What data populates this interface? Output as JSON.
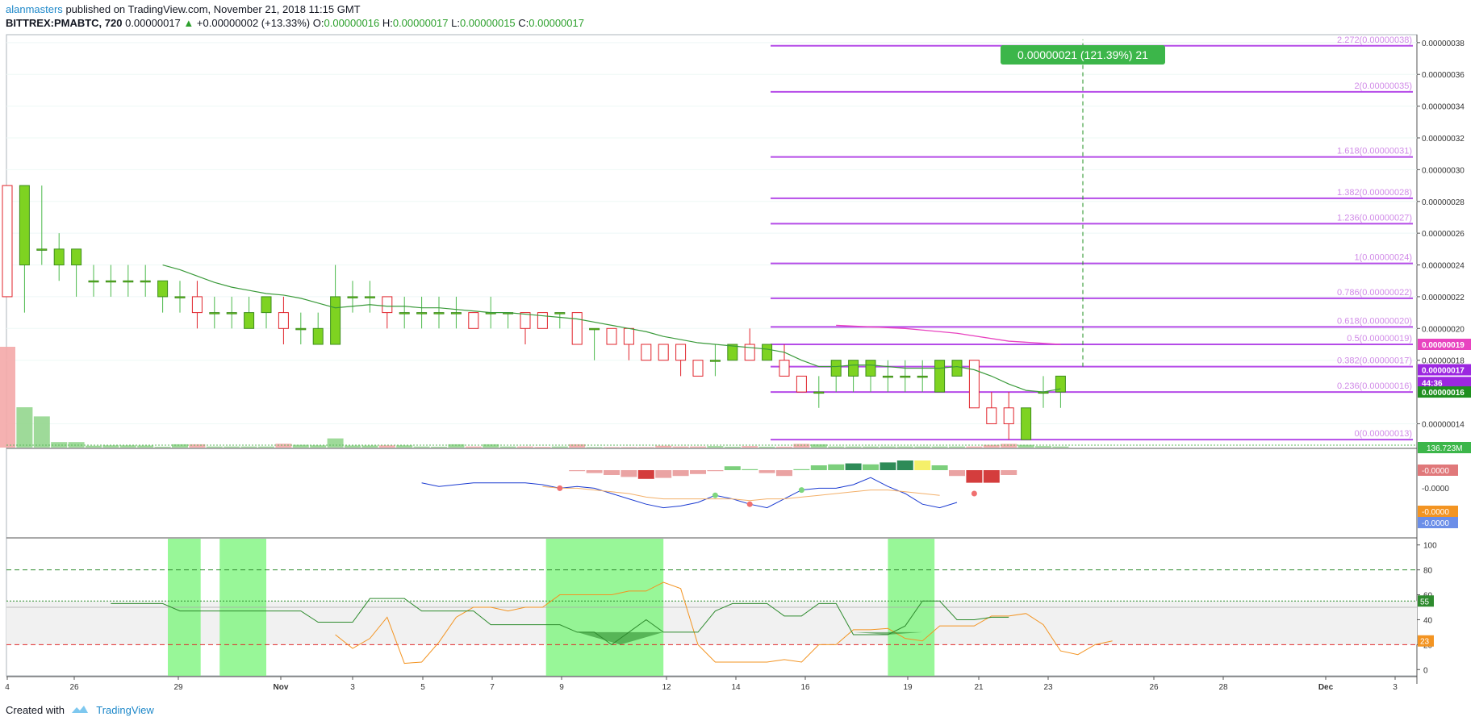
{
  "header": {
    "author": "alanmasters",
    "published": "published on TradingView.com, November 21, 2018 11:15 GMT",
    "symbol": "BITTREX:PMABTC, 720",
    "price": "0.00000017",
    "change_arrow": "▲",
    "change": "+0.00000002 (+13.33%)",
    "o_label": "O:",
    "o_value": "0.00000016",
    "h_label": "H:",
    "h_value": "0.00000017",
    "l_label": "L:",
    "l_value": "0.00000015",
    "c_label": "C:",
    "c_value": "0.00000017"
  },
  "footer": {
    "created_with": "Created with",
    "brand": "TradingView"
  },
  "colors": {
    "up": "#7ed321",
    "down": "#e0232b",
    "sma": "#3a9a3a",
    "fib": "#b54be8",
    "fib_label": "#d18be8",
    "ma_pink": "#e843c0",
    "rsi": "#2e8b2e",
    "stoch": "#f39422",
    "green_zone": "#7ef57e",
    "macd_blue": "#1a3ad1",
    "macd_light": "#7aa8e8"
  },
  "chart_data": {
    "type": "candlestick",
    "title": "BITTREX:PMABTC, 720",
    "x_ticks": [
      "4",
      "26",
      "29",
      "Nov",
      "3",
      "5",
      "7",
      "9",
      "12",
      "14",
      "16",
      "19",
      "21",
      "23",
      "26",
      "28",
      "Dec",
      "3"
    ],
    "price_axis": {
      "ylim": [
        1.25e-07,
        3.85e-07
      ],
      "ticks": [
        "0.00000038",
        "0.00000036",
        "0.00000034",
        "0.00000032",
        "0.00000030",
        "0.00000028",
        "0.00000026",
        "0.00000024",
        "0.00000022",
        "0.00000020",
        "0.00000018",
        "0.00000014"
      ],
      "badges": [
        {
          "label": "0.00000019",
          "color": "#e843c0",
          "value": 1.9e-07
        },
        {
          "label": "0.00000017",
          "color": "#9c27e0",
          "value": 1.74e-07
        },
        {
          "label": "44:36",
          "color": "#9c27e0",
          "value": 1.66e-07
        },
        {
          "label": "0.00000016",
          "color": "#1e8f1e",
          "value": 1.6e-07
        }
      ],
      "volume_badge": "136.723M"
    },
    "candles": [
      [
        2.9e-07,
        2.9e-07,
        2.2e-07,
        2.2e-07
      ],
      [
        2.4e-07,
        2.9e-07,
        2.1e-07,
        2.9e-07
      ],
      [
        2.5e-07,
        2.9e-07,
        2.4e-07,
        2.5e-07
      ],
      [
        2.4e-07,
        2.6e-07,
        2.3e-07,
        2.5e-07
      ],
      [
        2.4e-07,
        2.5e-07,
        2.2e-07,
        2.5e-07
      ],
      [
        2.3e-07,
        2.4e-07,
        2.2e-07,
        2.3e-07
      ],
      [
        2.3e-07,
        2.4e-07,
        2.2e-07,
        2.3e-07
      ],
      [
        2.3e-07,
        2.4e-07,
        2.2e-07,
        2.3e-07
      ],
      [
        2.3e-07,
        2.4e-07,
        2.2e-07,
        2.3e-07
      ],
      [
        2.2e-07,
        2.3e-07,
        2.1e-07,
        2.3e-07
      ],
      [
        2.2e-07,
        2.3e-07,
        2.1e-07,
        2.2e-07
      ],
      [
        2.2e-07,
        2.3e-07,
        2e-07,
        2.1e-07
      ],
      [
        2.1e-07,
        2.2e-07,
        2e-07,
        2.1e-07
      ],
      [
        2.1e-07,
        2.2e-07,
        2e-07,
        2.1e-07
      ],
      [
        2e-07,
        2.2e-07,
        2e-07,
        2.1e-07
      ],
      [
        2.1e-07,
        2.2e-07,
        2e-07,
        2.2e-07
      ],
      [
        2.1e-07,
        2.2e-07,
        1.9e-07,
        2e-07
      ],
      [
        2e-07,
        2.1e-07,
        1.9e-07,
        2e-07
      ],
      [
        1.9e-07,
        2.1e-07,
        1.9e-07,
        2e-07
      ],
      [
        1.9e-07,
        2.4e-07,
        1.9e-07,
        2.2e-07
      ],
      [
        2.2e-07,
        2.3e-07,
        2.1e-07,
        2.2e-07
      ],
      [
        2.2e-07,
        2.3e-07,
        2.1e-07,
        2.2e-07
      ],
      [
        2.2e-07,
        2.2e-07,
        2e-07,
        2.1e-07
      ],
      [
        2.1e-07,
        2.2e-07,
        2e-07,
        2.1e-07
      ],
      [
        2.1e-07,
        2.2e-07,
        2e-07,
        2.1e-07
      ],
      [
        2.1e-07,
        2.2e-07,
        2e-07,
        2.1e-07
      ],
      [
        2.1e-07,
        2.2e-07,
        2e-07,
        2.1e-07
      ],
      [
        2.1e-07,
        2.1e-07,
        2e-07,
        2e-07
      ],
      [
        2.1e-07,
        2.2e-07,
        2e-07,
        2.1e-07
      ],
      [
        2.1e-07,
        2.1e-07,
        2e-07,
        2.1e-07
      ],
      [
        2.1e-07,
        2.1e-07,
        1.9e-07,
        2e-07
      ],
      [
        2.1e-07,
        2.1e-07,
        2e-07,
        2e-07
      ],
      [
        2.1e-07,
        2.1e-07,
        2e-07,
        2.1e-07
      ],
      [
        2.1e-07,
        2.1e-07,
        1.9e-07,
        1.9e-07
      ],
      [
        2e-07,
        2e-07,
        1.8e-07,
        2e-07
      ],
      [
        2e-07,
        2e-07,
        1.9e-07,
        1.9e-07
      ],
      [
        2e-07,
        2e-07,
        1.8e-07,
        1.9e-07
      ],
      [
        1.9e-07,
        1.9e-07,
        1.8e-07,
        1.8e-07
      ],
      [
        1.9e-07,
        1.9e-07,
        1.8e-07,
        1.8e-07
      ],
      [
        1.9e-07,
        1.9e-07,
        1.7e-07,
        1.8e-07
      ],
      [
        1.8e-07,
        1.8e-07,
        1.7e-07,
        1.7e-07
      ],
      [
        1.8e-07,
        1.9e-07,
        1.7e-07,
        1.8e-07
      ],
      [
        1.8e-07,
        1.9e-07,
        1.8e-07,
        1.9e-07
      ],
      [
        1.9e-07,
        2e-07,
        1.8e-07,
        1.8e-07
      ],
      [
        1.8e-07,
        1.9e-07,
        1.8e-07,
        1.9e-07
      ],
      [
        1.8e-07,
        1.9e-07,
        1.7e-07,
        1.7e-07
      ],
      [
        1.7e-07,
        1.7e-07,
        1.6e-07,
        1.6e-07
      ],
      [
        1.6e-07,
        1.7e-07,
        1.5e-07,
        1.6e-07
      ],
      [
        1.7e-07,
        1.8e-07,
        1.6e-07,
        1.8e-07
      ],
      [
        1.7e-07,
        1.8e-07,
        1.6e-07,
        1.8e-07
      ],
      [
        1.7e-07,
        1.8e-07,
        1.6e-07,
        1.8e-07
      ],
      [
        1.7e-07,
        1.8e-07,
        1.6e-07,
        1.7e-07
      ],
      [
        1.7e-07,
        1.8e-07,
        1.6e-07,
        1.7e-07
      ],
      [
        1.7e-07,
        1.8e-07,
        1.6e-07,
        1.7e-07
      ],
      [
        1.6e-07,
        1.8e-07,
        1.6e-07,
        1.8e-07
      ],
      [
        1.7e-07,
        1.8e-07,
        1.7e-07,
        1.8e-07
      ],
      [
        1.8e-07,
        1.8e-07,
        1.5e-07,
        1.5e-07
      ],
      [
        1.5e-07,
        1.6e-07,
        1.4e-07,
        1.4e-07
      ],
      [
        1.5e-07,
        1.6e-07,
        1.3e-07,
        1.4e-07
      ],
      [
        1.3e-07,
        1.5e-07,
        1.3e-07,
        1.5e-07
      ],
      [
        1.6e-07,
        1.7e-07,
        1.5e-07,
        1.6e-07
      ],
      [
        1.6e-07,
        1.7e-07,
        1.5e-07,
        1.7e-07
      ]
    ],
    "sma": [
      null,
      null,
      null,
      null,
      null,
      null,
      null,
      null,
      null,
      2.4e-07,
      2.37e-07,
      2.33e-07,
      2.29e-07,
      2.26e-07,
      2.24e-07,
      2.22e-07,
      2.21e-07,
      2.19e-07,
      2.16e-07,
      2.13e-07,
      2.14e-07,
      2.15e-07,
      2.14e-07,
      2.14e-07,
      2.13e-07,
      2.13e-07,
      2.12e-07,
      2.11e-07,
      2.1e-07,
      2.1e-07,
      2.09e-07,
      2.08e-07,
      2.07e-07,
      2.06e-07,
      2.04e-07,
      2.02e-07,
      2e-07,
      1.98e-07,
      1.95e-07,
      1.93e-07,
      1.91e-07,
      1.9e-07,
      1.89e-07,
      1.88e-07,
      1.87e-07,
      1.85e-07,
      1.8e-07,
      1.76e-07,
      1.76e-07,
      1.77e-07,
      1.77e-07,
      1.76e-07,
      1.75e-07,
      1.75e-07,
      1.75e-07,
      1.76e-07,
      1.74e-07,
      1.7e-07,
      1.65e-07,
      1.61e-07,
      1.6e-07,
      1.62e-07
    ],
    "ma_pink": [
      {
        "i": 48,
        "v": 2.02e-07
      },
      {
        "i": 52,
        "v": 2e-07
      },
      {
        "i": 55,
        "v": 1.97e-07
      },
      {
        "i": 58,
        "v": 1.92e-07
      },
      {
        "i": 61,
        "v": 1.9e-07
      }
    ],
    "fib_levels": [
      {
        "ratio": "0",
        "price": "0.00000013",
        "value": 1.3e-07
      },
      {
        "ratio": "0.236",
        "price": "0.00000016",
        "value": 1.6e-07
      },
      {
        "ratio": "0.382",
        "price": "0.00000017",
        "value": 1.76e-07
      },
      {
        "ratio": "0.5",
        "price": "0.00000019",
        "value": 1.9e-07
      },
      {
        "ratio": "0.618",
        "price": "0.00000020",
        "value": 2.01e-07
      },
      {
        "ratio": "0.786",
        "price": "0.00000022",
        "value": 2.19e-07
      },
      {
        "ratio": "1",
        "price": "0.00000024",
        "value": 2.41e-07
      },
      {
        "ratio": "1.236",
        "price": "0.00000027",
        "value": 2.66e-07
      },
      {
        "ratio": "1.382",
        "price": "0.00000028",
        "value": 2.82e-07
      },
      {
        "ratio": "1.618",
        "price": "0.00000031",
        "value": 3.08e-07
      },
      {
        "ratio": "2",
        "price": "0.00000035",
        "value": 3.49e-07
      },
      {
        "ratio": "2.272",
        "price": "0.00000038",
        "value": 3.78e-07
      }
    ],
    "target_label": "0.00000021 (121.39%) 21",
    "volume": [
      55,
      22,
      17,
      3,
      3,
      1,
      1.2,
      1.2,
      1.1,
      0.5,
      1.8,
      1.8,
      0.6,
      0.6,
      0.6,
      0.6,
      2.1,
      1.5,
      1.2,
      5.0,
      1.1,
      1.1,
      1.2,
      1.2,
      0.6,
      0.5,
      1.8,
      0.6,
      1.8,
      0.6,
      0.6,
      0.4,
      0.6,
      1.8,
      0.3,
      0.3,
      0.3,
      0.3,
      1.0,
      0.6,
      0.6,
      0.8,
      0.5,
      0.8,
      0.5,
      0.5,
      2.0,
      1.8,
      0.6,
      0.6,
      0.6,
      0.6,
      0.6,
      0.6,
      0.6,
      0.6,
      0.6,
      1.5,
      2.0,
      1.5,
      0.8,
      0.6
    ],
    "macd": {
      "axis_ticks": [
        "-0.0000",
        "-0.0000"
      ],
      "badges": [
        {
          "label": "-0.0000",
          "color": "#e0787a"
        },
        {
          "label": "-0.0000",
          "color": "#f39422"
        },
        {
          "label": "-0.0000",
          "color": "#6b8ee8"
        }
      ],
      "hist": [
        null,
        null,
        null,
        null,
        null,
        null,
        null,
        null,
        null,
        null,
        null,
        null,
        null,
        null,
        null,
        null,
        null,
        null,
        null,
        null,
        null,
        null,
        null,
        null,
        null,
        null,
        null,
        null,
        null,
        null,
        null,
        null,
        null,
        -0.1,
        -0.3,
        -0.5,
        -0.7,
        -0.9,
        -0.8,
        -0.6,
        -0.4,
        -0.1,
        0.4,
        0.1,
        -0.3,
        -0.6,
        0.1,
        0.5,
        0.6,
        0.7,
        0.6,
        0.8,
        1.0,
        1.0,
        0.5,
        -0.6,
        -1.3,
        -1.3,
        -0.5
      ],
      "line": [
        null,
        null,
        null,
        null,
        null,
        null,
        null,
        null,
        null,
        null,
        null,
        null,
        null,
        null,
        null,
        null,
        null,
        null,
        null,
        null,
        null,
        null,
        null,
        null,
        0.6,
        0.4,
        0.5,
        0.6,
        0.6,
        0.6,
        0.6,
        0.5,
        0.3,
        0.4,
        0.3,
        0.0,
        -0.3,
        -0.6,
        -0.8,
        -0.7,
        -0.5,
        -0.1,
        -0.3,
        -0.6,
        -0.8,
        -0.3,
        0.2,
        0.3,
        0.3,
        0.5,
        0.9,
        0.4,
        0.0,
        -0.6,
        -0.8,
        -0.5
      ],
      "signal": [
        null,
        null,
        null,
        null,
        null,
        null,
        null,
        null,
        null,
        null,
        null,
        null,
        null,
        null,
        null,
        null,
        null,
        null,
        null,
        null,
        null,
        null,
        null,
        null,
        null,
        null,
        null,
        null,
        null,
        null,
        null,
        0.4,
        0.3,
        0.3,
        0.2,
        0.1,
        0.0,
        -0.2,
        -0.3,
        -0.3,
        -0.3,
        -0.3,
        -0.3,
        -0.4,
        -0.3,
        -0.3,
        -0.2,
        -0.1,
        0.0,
        0.1,
        0.2,
        0.2,
        0.1,
        0.0,
        -0.1
      ]
    },
    "oscillator": {
      "ylim": [
        -5,
        105
      ],
      "ticks": [
        "100",
        "80",
        "60",
        "40",
        "20",
        "0"
      ],
      "badges": [
        {
          "label": "55",
          "color": "#2e8b2e"
        },
        {
          "label": "23",
          "color": "#f39422"
        }
      ],
      "rsi": [
        null,
        null,
        null,
        null,
        null,
        null,
        53,
        53,
        53,
        53,
        47,
        47,
        47,
        47,
        47,
        47,
        47,
        47,
        38,
        38,
        38,
        57,
        57,
        57,
        47,
        47,
        47,
        47,
        36,
        36,
        36,
        36,
        36,
        30,
        30,
        20,
        30,
        40,
        30,
        30,
        30,
        47,
        53,
        53,
        53,
        43,
        43,
        53,
        53,
        28,
        28,
        28,
        35,
        55,
        55,
        40,
        40,
        42,
        42
      ],
      "stoch": [
        null,
        null,
        null,
        null,
        null,
        null,
        null,
        null,
        null,
        null,
        null,
        null,
        null,
        null,
        null,
        null,
        null,
        null,
        null,
        28,
        17,
        25,
        42,
        5,
        6,
        22,
        42,
        50,
        50,
        47,
        50,
        50,
        60,
        60,
        60,
        60,
        63,
        63,
        70,
        65,
        20,
        6,
        6,
        6,
        6,
        8,
        6,
        20,
        20,
        32,
        32,
        33,
        25,
        23,
        35,
        35,
        35,
        43,
        43,
        45,
        36,
        15,
        12,
        20,
        23
      ],
      "zones": [
        [
          9.7,
          10.8
        ],
        [
          12.7,
          14.6
        ],
        [
          31.6,
          37.6
        ],
        [
          51.4,
          53.3
        ]
      ]
    }
  }
}
